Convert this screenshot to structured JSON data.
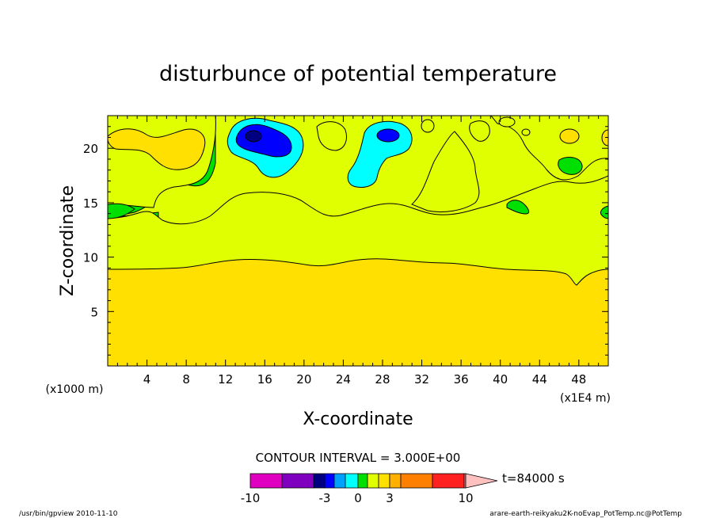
{
  "chart_data": {
    "type": "heatmap",
    "title": "disturbunce of potential temperature",
    "xlabel": "X-coordinate",
    "ylabel": "Z-coordinate",
    "x_scale_label": "(x1000 m)",
    "x_unit_label": "(x1E4 m)",
    "xlim": [
      0,
      51
    ],
    "ylim": [
      0,
      23
    ],
    "x_ticks": [
      "4",
      "8",
      "12",
      "16",
      "20",
      "24",
      "28",
      "32",
      "36",
      "40",
      "44",
      "48"
    ],
    "x_tick_values": [
      4,
      8,
      12,
      16,
      20,
      24,
      28,
      32,
      36,
      40,
      44,
      48
    ],
    "y_ticks": [
      "5",
      "10",
      "15",
      "20"
    ],
    "y_tick_values": [
      5,
      10,
      15,
      20
    ],
    "contour_interval_text": "CONTOUR INTERVAL = 3.000E+00",
    "time_label": "t=84000 s",
    "colorbar": {
      "levels": [
        -10,
        -9,
        -6,
        -3,
        -2,
        -1,
        0,
        1,
        2,
        3,
        6,
        9,
        10
      ],
      "tick_labels": [
        "-10",
        "-3",
        "0",
        "3",
        "10"
      ],
      "tick_values": [
        -10,
        -3,
        0,
        3,
        10
      ],
      "colors": [
        "#e000c0",
        "#8000c0",
        "#000080",
        "#0000ff",
        "#00a0ff",
        "#00ffff",
        "#00e000",
        "#e0ff00",
        "#ffe000",
        "#ffb000",
        "#ff8000",
        "#ff2020",
        "#ff8080"
      ],
      "overflow_color": "#ffc0c0"
    },
    "regions": [
      {
        "value": 1.5,
        "z_range": [
          0,
          9.5
        ],
        "description": "lower layer"
      },
      {
        "value": 0.5,
        "z_range": [
          9.5,
          16
        ],
        "description": "middle layer"
      },
      {
        "value": -0.5,
        "z_range": [
          15,
          23
        ],
        "description": "upper disturbed layer"
      },
      {
        "value": -4,
        "center": [
          15.5,
          21
        ],
        "description": "upper minimum near x=16"
      },
      {
        "value": -2.5,
        "center": [
          28.5,
          21
        ],
        "description": "upper minimum near x=28"
      }
    ]
  },
  "footer": {
    "left": "/usr/bin/gpview  2010-11-10",
    "right": "arare-earth-reikyaku2K-noEvap_PotTemp.nc@PotTemp"
  }
}
